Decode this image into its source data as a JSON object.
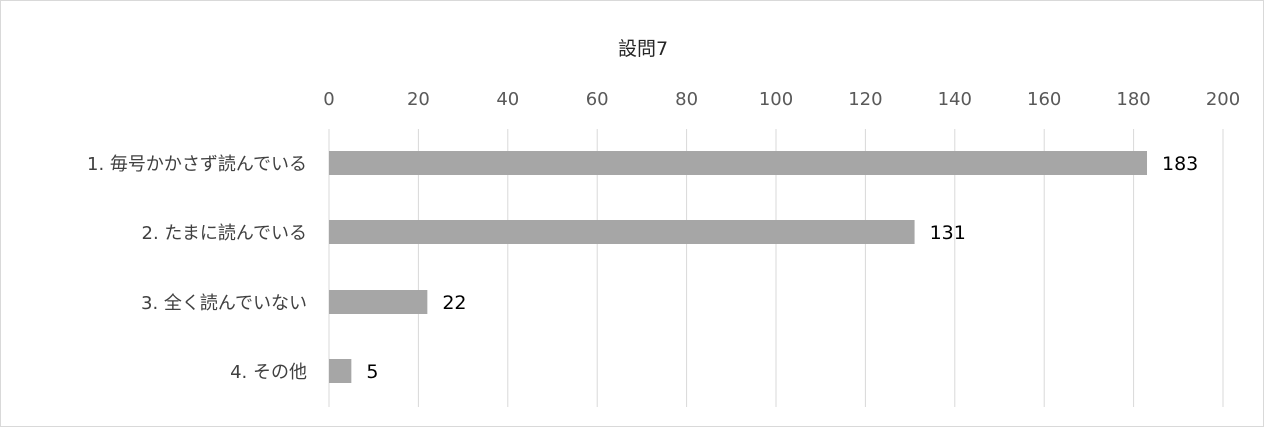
{
  "chart_data": {
    "type": "bar",
    "orientation": "horizontal",
    "title": "設問7",
    "categories": [
      "1.  毎号かかさず読んでいる",
      "2.  たまに読んでいる",
      "3.  全く読んでいない",
      "4.  その他"
    ],
    "values": [
      183,
      131,
      22,
      5
    ],
    "xlim": [
      0,
      200
    ],
    "x_ticks": [
      "0",
      "20",
      "40",
      "60",
      "80",
      "100",
      "120",
      "140",
      "160",
      "180",
      "200"
    ],
    "axis_position": "top",
    "grid": true,
    "data_labels": [
      "183",
      "131",
      "22",
      "5"
    ],
    "bar_color": "#a6a6a6"
  }
}
